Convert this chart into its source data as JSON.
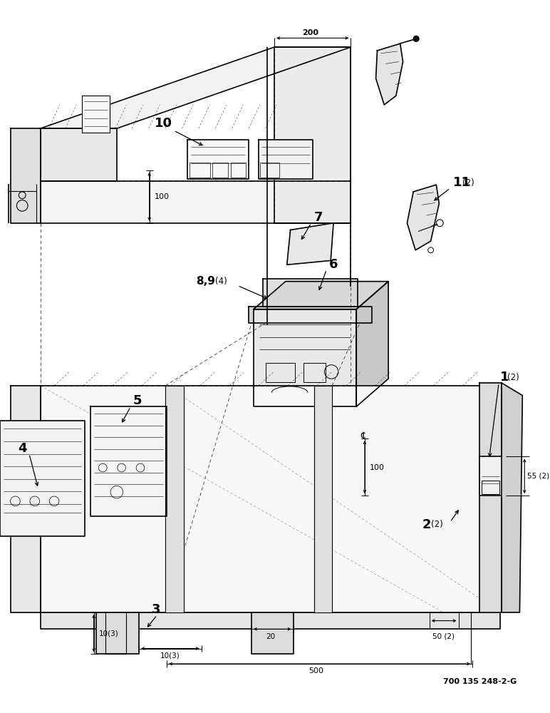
{
  "bg_color": "#ffffff",
  "line_color": "#000000",
  "fig_width": 7.72,
  "fig_height": 10.0,
  "dpi": 100,
  "watermark": "700 135 248-2-G",
  "dim_200": "200",
  "dim_100a": "100",
  "dim_100b": "100",
  "dim_55": "55 (2)",
  "dim_50": "50 (2)",
  "dim_500": "500",
  "dim_20": "20",
  "dim_10a": "10(3)",
  "dim_10b": "10(3)",
  "lbl_1": "1",
  "lbl_1q": "(2)",
  "lbl_2": "2",
  "lbl_2q": "(2)",
  "lbl_3": "3",
  "lbl_4": "4",
  "lbl_5": "5",
  "lbl_6": "6",
  "lbl_7": "7",
  "lbl_89": "8,9",
  "lbl_89q": "(4)",
  "lbl_10": "10",
  "lbl_11": "11",
  "lbl_11q": "(2)"
}
